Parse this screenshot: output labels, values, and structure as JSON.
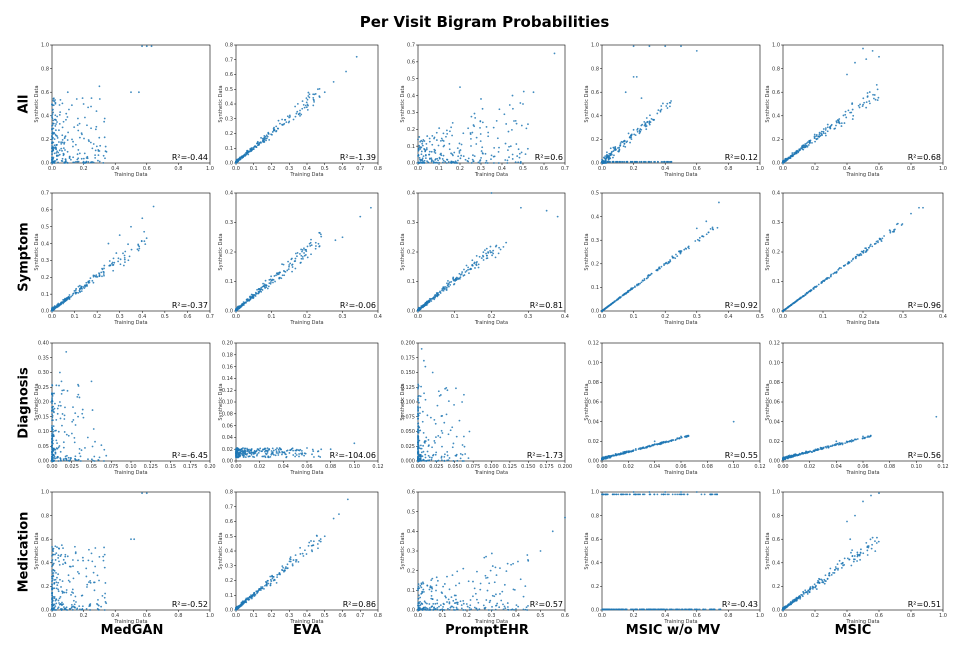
{
  "title": "Per Visit Bigram Probabilities",
  "rows": [
    "All",
    "Symptom",
    "Diagnosis",
    "Medication"
  ],
  "columns": [
    "MedGAN",
    "EVA",
    "PromptEHR",
    "MSIC w/o MV",
    "MSIC"
  ],
  "point_color": "#1f77b4",
  "chart_data": [
    {
      "row": "All",
      "column": "MedGAN",
      "type": "scatter",
      "xlabel": "Training Data",
      "ylabel": "Synthetic Data",
      "r2": "R²=-0.44",
      "xlim": [
        0,
        1.0
      ],
      "ylim": [
        0,
        1.0
      ],
      "xticks": [
        "0.0",
        "0.2",
        "0.4",
        "0.6",
        "0.8",
        "1.0"
      ],
      "yticks": [
        "0.0",
        "0.2",
        "0.4",
        "0.6",
        "0.8",
        "1.0"
      ],
      "pattern": "blob",
      "points": [
        [
          0.57,
          0.99
        ],
        [
          0.6,
          0.99
        ],
        [
          0.63,
          0.99
        ],
        [
          0.5,
          0.6
        ],
        [
          0.55,
          0.6
        ],
        [
          0.2,
          0.5
        ],
        [
          0.25,
          0.55
        ],
        [
          0.33,
          0.35
        ],
        [
          0.1,
          0.6
        ],
        [
          0.3,
          0.65
        ]
      ]
    },
    {
      "row": "All",
      "column": "EVA",
      "type": "scatter",
      "xlabel": "Training Data",
      "ylabel": "Synthetic Data",
      "r2": "R²=-1.39",
      "xlim": [
        0,
        0.8
      ],
      "ylim": [
        0,
        0.8
      ],
      "xticks": [
        "0.0",
        "0.1",
        "0.2",
        "0.3",
        "0.4",
        "0.5",
        "0.6",
        "0.7",
        "0.8"
      ],
      "yticks": [
        "0.0",
        "0.1",
        "0.2",
        "0.3",
        "0.4",
        "0.5",
        "0.6",
        "0.7",
        "0.8"
      ],
      "pattern": "linear",
      "points": [
        [
          0.68,
          0.72
        ],
        [
          0.62,
          0.62
        ],
        [
          0.55,
          0.55
        ],
        [
          0.5,
          0.48
        ]
      ]
    },
    {
      "row": "All",
      "column": "PromptEHR",
      "type": "scatter",
      "xlabel": "Training Data",
      "ylabel": "Synthetic Data",
      "r2": "R²=0.6",
      "xlim": [
        0,
        0.7
      ],
      "ylim": [
        0,
        0.7
      ],
      "xticks": [
        "0.0",
        "0.1",
        "0.2",
        "0.3",
        "0.4",
        "0.5",
        "0.6",
        "0.7"
      ],
      "yticks": [
        "0.0",
        "0.1",
        "0.2",
        "0.3",
        "0.4",
        "0.5",
        "0.6",
        "0.7"
      ],
      "pattern": "spread",
      "points": [
        [
          0.65,
          0.65
        ],
        [
          0.55,
          0.42
        ],
        [
          0.5,
          0.35
        ],
        [
          0.45,
          0.4
        ],
        [
          0.3,
          0.38
        ],
        [
          0.2,
          0.45
        ]
      ]
    },
    {
      "row": "All",
      "column": "MSIC w/o MV",
      "type": "scatter",
      "xlabel": "Training Data",
      "ylabel": "Synthetic Data",
      "r2": "R²=0.12",
      "xlim": [
        0,
        1.0
      ],
      "ylim": [
        0,
        1.0
      ],
      "xticks": [
        "0.0",
        "0.2",
        "0.4",
        "0.6",
        "0.8",
        "1.0"
      ],
      "yticks": [
        "0.0",
        "0.2",
        "0.4",
        "0.6",
        "0.8",
        "1.0"
      ],
      "pattern": "bands",
      "points": [
        [
          0.2,
          0.99
        ],
        [
          0.3,
          0.99
        ],
        [
          0.4,
          0.99
        ],
        [
          0.5,
          0.99
        ],
        [
          0.6,
          0.95
        ],
        [
          0.2,
          0.73
        ],
        [
          0.22,
          0.73
        ],
        [
          0.15,
          0.6
        ],
        [
          0.25,
          0.55
        ],
        [
          0.35,
          0.42
        ]
      ]
    },
    {
      "row": "All",
      "column": "MSIC",
      "type": "scatter",
      "xlabel": "Training Data",
      "ylabel": "Synthetic Data",
      "r2": "R²=0.68",
      "xlim": [
        0,
        1.0
      ],
      "ylim": [
        0,
        1.0
      ],
      "xticks": [
        "0.0",
        "0.2",
        "0.4",
        "0.6",
        "0.8",
        "1.0"
      ],
      "yticks": [
        "0.0",
        "0.2",
        "0.4",
        "0.6",
        "0.8",
        "1.0"
      ],
      "pattern": "linear",
      "points": [
        [
          0.5,
          0.97
        ],
        [
          0.56,
          0.95
        ],
        [
          0.6,
          0.9
        ],
        [
          0.45,
          0.85
        ],
        [
          0.4,
          0.75
        ],
        [
          0.52,
          0.88
        ]
      ]
    },
    {
      "row": "Symptom",
      "column": "MedGAN",
      "type": "scatter",
      "xlabel": "Training Data",
      "ylabel": "Synthetic Data",
      "r2": "R²=-0.37",
      "xlim": [
        0,
        0.7
      ],
      "ylim": [
        0,
        0.7
      ],
      "xticks": [
        "0.0",
        "0.1",
        "0.2",
        "0.3",
        "0.4",
        "0.5",
        "0.6",
        "0.7"
      ],
      "yticks": [
        "0.0",
        "0.1",
        "0.2",
        "0.3",
        "0.4",
        "0.5",
        "0.6",
        "0.7"
      ],
      "pattern": "linear",
      "points": [
        [
          0.45,
          0.62
        ],
        [
          0.4,
          0.55
        ],
        [
          0.35,
          0.5
        ],
        [
          0.3,
          0.45
        ],
        [
          0.25,
          0.4
        ]
      ]
    },
    {
      "row": "Symptom",
      "column": "EVA",
      "type": "scatter",
      "xlabel": "Training Data",
      "ylabel": "Synthetic Data",
      "r2": "R²=-0.06",
      "xlim": [
        0,
        0.4
      ],
      "ylim": [
        0,
        0.4
      ],
      "xticks": [
        "0.0",
        "0.1",
        "0.2",
        "0.3",
        "0.4"
      ],
      "yticks": [
        "0.0",
        "0.1",
        "0.2",
        "0.3",
        "0.4"
      ],
      "pattern": "linear",
      "points": [
        [
          0.38,
          0.35
        ],
        [
          0.35,
          0.32
        ],
        [
          0.3,
          0.25
        ],
        [
          0.28,
          0.24
        ]
      ]
    },
    {
      "row": "Symptom",
      "column": "PromptEHR",
      "type": "scatter",
      "xlabel": "Training Data",
      "ylabel": "Synthetic Data",
      "r2": "R²=0.81",
      "xlim": [
        0,
        0.4
      ],
      "ylim": [
        0,
        0.4
      ],
      "xticks": [
        "0.0",
        "0.1",
        "0.2",
        "0.3",
        "0.4"
      ],
      "yticks": [
        "0.0",
        "0.1",
        "0.2",
        "0.3",
        "0.4"
      ],
      "pattern": "linear",
      "points": [
        [
          0.2,
          0.4
        ],
        [
          0.28,
          0.35
        ],
        [
          0.35,
          0.34
        ],
        [
          0.38,
          0.32
        ]
      ]
    },
    {
      "row": "Symptom",
      "column": "MSIC w/o MV",
      "type": "scatter",
      "xlabel": "Training Data",
      "ylabel": "Synthetic Data",
      "r2": "R²=0.92",
      "xlim": [
        0,
        0.5
      ],
      "ylim": [
        0,
        0.5
      ],
      "xticks": [
        "0.0",
        "0.1",
        "0.2",
        "0.3",
        "0.4",
        "0.5"
      ],
      "yticks": [
        "0.0",
        "0.1",
        "0.2",
        "0.3",
        "0.4",
        "0.5"
      ],
      "pattern": "tight",
      "points": [
        [
          0.37,
          0.46
        ],
        [
          0.33,
          0.38
        ],
        [
          0.3,
          0.35
        ]
      ]
    },
    {
      "row": "Symptom",
      "column": "MSIC",
      "type": "scatter",
      "xlabel": "Training Data",
      "ylabel": "Synthetic Data",
      "r2": "R²=0.96",
      "xlim": [
        0,
        0.4
      ],
      "ylim": [
        0,
        0.4
      ],
      "xticks": [
        "0.0",
        "0.1",
        "0.2",
        "0.3",
        "0.4"
      ],
      "yticks": [
        "0.0",
        "0.1",
        "0.2",
        "0.3",
        "0.4"
      ],
      "pattern": "tight",
      "points": [
        [
          0.35,
          0.35
        ],
        [
          0.34,
          0.35
        ],
        [
          0.32,
          0.33
        ]
      ]
    },
    {
      "row": "Diagnosis",
      "column": "MedGAN",
      "type": "scatter",
      "xlabel": "Training Data",
      "ylabel": "Synthetic Data",
      "r2": "R²=-6.45",
      "xlim": [
        0,
        0.2
      ],
      "ylim": [
        0,
        0.4
      ],
      "xticks": [
        "0.00",
        "0.025",
        "0.05",
        "0.075",
        "0.10",
        "0.125",
        "0.15",
        "0.175",
        "0.20"
      ],
      "yticks": [
        "0.00",
        "0.05",
        "0.10",
        "0.15",
        "0.20",
        "0.25",
        "0.30",
        "0.35",
        "0.40"
      ],
      "pattern": "vertical",
      "points": [
        [
          0.018,
          0.37
        ],
        [
          0.01,
          0.3
        ],
        [
          0.012,
          0.27
        ],
        [
          0.05,
          0.27
        ],
        [
          0.015,
          0.24
        ],
        [
          0.01,
          0.2
        ]
      ]
    },
    {
      "row": "Diagnosis",
      "column": "EVA",
      "type": "scatter",
      "xlabel": "Training Data",
      "ylabel": "Synthetic Data",
      "r2": "R²=-104.06",
      "xlim": [
        0,
        0.12
      ],
      "ylim": [
        0,
        0.2
      ],
      "xticks": [
        "0.00",
        "0.02",
        "0.04",
        "0.06",
        "0.08",
        "0.10",
        "0.12"
      ],
      "yticks": [
        "0.00",
        "0.02",
        "0.04",
        "0.06",
        "0.08",
        "0.10",
        "0.12",
        "0.14",
        "0.16",
        "0.18",
        "0.20"
      ],
      "pattern": "flat",
      "points": [
        [
          0.1,
          0.03
        ],
        [
          0.08,
          0.02
        ],
        [
          0.06,
          0.022
        ]
      ]
    },
    {
      "row": "Diagnosis",
      "column": "PromptEHR",
      "type": "scatter",
      "xlabel": "Training Data",
      "ylabel": "Synthetic Data",
      "r2": "R²=-1.73",
      "xlim": [
        0,
        0.2
      ],
      "ylim": [
        0,
        0.2
      ],
      "xticks": [
        "0.000",
        "0.025",
        "0.050",
        "0.075",
        "0.100",
        "0.125",
        "0.150",
        "0.175",
        "0.200"
      ],
      "yticks": [
        "0.000",
        "0.025",
        "0.050",
        "0.075",
        "0.100",
        "0.125",
        "0.150",
        "0.175",
        "0.200"
      ],
      "pattern": "vertical",
      "points": [
        [
          0.005,
          0.19
        ],
        [
          0.008,
          0.17
        ],
        [
          0.01,
          0.16
        ],
        [
          0.02,
          0.15
        ],
        [
          0.04,
          0.12
        ],
        [
          0.06,
          0.1
        ],
        [
          0.07,
          0.05
        ]
      ]
    },
    {
      "row": "Diagnosis",
      "column": "MSIC w/o MV",
      "type": "scatter",
      "xlabel": "Training Data",
      "ylabel": "Synthetic Data",
      "r2": "R²=0.55",
      "xlim": [
        0,
        0.12
      ],
      "ylim": [
        0,
        0.12
      ],
      "xticks": [
        "0.00",
        "0.02",
        "0.04",
        "0.06",
        "0.08",
        "0.10",
        "0.12"
      ],
      "yticks": [
        "0.00",
        "0.02",
        "0.04",
        "0.06",
        "0.08",
        "0.10",
        "0.12"
      ],
      "pattern": "flatline",
      "points": [
        [
          0.1,
          0.04
        ],
        [
          0.06,
          0.025
        ],
        [
          0.04,
          0.02
        ]
      ]
    },
    {
      "row": "Diagnosis",
      "column": "MSIC",
      "type": "scatter",
      "xlabel": "Training Data",
      "ylabel": "Synthetic Data",
      "r2": "R²=0.56",
      "xlim": [
        0,
        0.12
      ],
      "ylim": [
        0,
        0.12
      ],
      "xticks": [
        "0.00",
        "0.02",
        "0.04",
        "0.06",
        "0.08",
        "0.10",
        "0.12"
      ],
      "yticks": [
        "0.00",
        "0.02",
        "0.04",
        "0.06",
        "0.08",
        "0.10",
        "0.12"
      ],
      "pattern": "flatline",
      "points": [
        [
          0.115,
          0.045
        ],
        [
          0.06,
          0.025
        ],
        [
          0.04,
          0.02
        ]
      ]
    },
    {
      "row": "Medication",
      "column": "MedGAN",
      "type": "scatter",
      "xlabel": "Training Data",
      "ylabel": "Synthetic Data",
      "r2": "R²=-0.52",
      "xlim": [
        0,
        1.0
      ],
      "ylim": [
        0,
        1.0
      ],
      "xticks": [
        "0.0",
        "0.2",
        "0.4",
        "0.6",
        "0.8",
        "1.0"
      ],
      "yticks": [
        "0.0",
        "0.2",
        "0.4",
        "0.6",
        "0.8",
        "1.0"
      ],
      "pattern": "blob",
      "points": [
        [
          0.57,
          0.99
        ],
        [
          0.6,
          0.99
        ],
        [
          0.5,
          0.6
        ],
        [
          0.52,
          0.6
        ],
        [
          0.25,
          0.48
        ],
        [
          0.3,
          0.45
        ],
        [
          0.15,
          0.48
        ]
      ]
    },
    {
      "row": "Medication",
      "column": "EVA",
      "type": "scatter",
      "xlabel": "Training Data",
      "ylabel": "Synthetic Data",
      "r2": "R²=0.86",
      "xlim": [
        0,
        0.8
      ],
      "ylim": [
        0,
        0.8
      ],
      "xticks": [
        "0.0",
        "0.1",
        "0.2",
        "0.3",
        "0.4",
        "0.5",
        "0.6",
        "0.7",
        "0.8"
      ],
      "yticks": [
        "0.0",
        "0.1",
        "0.2",
        "0.3",
        "0.4",
        "0.5",
        "0.6",
        "0.7",
        "0.8"
      ],
      "pattern": "linear",
      "points": [
        [
          0.63,
          0.75
        ],
        [
          0.58,
          0.65
        ],
        [
          0.55,
          0.62
        ],
        [
          0.5,
          0.5
        ]
      ]
    },
    {
      "row": "Medication",
      "column": "PromptEHR",
      "type": "scatter",
      "xlabel": "Training Data",
      "ylabel": "Synthetic Data",
      "r2": "R²=0.57",
      "xlim": [
        0,
        0.6
      ],
      "ylim": [
        0,
        0.6
      ],
      "xticks": [
        "0.0",
        "0.1",
        "0.2",
        "0.3",
        "0.4",
        "0.5",
        "0.6"
      ],
      "yticks": [
        "0.0",
        "0.1",
        "0.2",
        "0.3",
        "0.4",
        "0.5",
        "0.6"
      ],
      "pattern": "spread",
      "points": [
        [
          0.6,
          0.47
        ],
        [
          0.55,
          0.4
        ],
        [
          0.5,
          0.3
        ],
        [
          0.45,
          0.25
        ],
        [
          0.38,
          0.23
        ]
      ]
    },
    {
      "row": "Medication",
      "column": "MSIC w/o MV",
      "type": "scatter",
      "xlabel": "Training Data",
      "ylabel": "Synthetic Data",
      "r2": "R²=-0.43",
      "xlim": [
        0,
        1.0
      ],
      "ylim": [
        0,
        1.0
      ],
      "xticks": [
        "0.0",
        "0.2",
        "0.4",
        "0.6",
        "0.8",
        "1.0"
      ],
      "yticks": [
        "0.0",
        "0.2",
        "0.4",
        "0.6",
        "0.8",
        "1.0"
      ],
      "pattern": "twolines",
      "points": [
        [
          0.2,
          1.0
        ],
        [
          0.3,
          1.0
        ],
        [
          0.4,
          1.0
        ],
        [
          0.5,
          1.0
        ],
        [
          0.6,
          1.0
        ]
      ]
    },
    {
      "row": "Medication",
      "column": "MSIC",
      "type": "scatter",
      "xlabel": "Training Data",
      "ylabel": "Synthetic Data",
      "r2": "R²=0.51",
      "xlim": [
        0,
        1.0
      ],
      "ylim": [
        0,
        1.0
      ],
      "xticks": [
        "0.0",
        "0.2",
        "0.4",
        "0.6",
        "0.8",
        "1.0"
      ],
      "yticks": [
        "0.0",
        "0.2",
        "0.4",
        "0.6",
        "0.8",
        "1.0"
      ],
      "pattern": "linear",
      "points": [
        [
          0.6,
          0.99
        ],
        [
          0.55,
          0.97
        ],
        [
          0.5,
          0.92
        ],
        [
          0.45,
          0.8
        ],
        [
          0.4,
          0.75
        ],
        [
          0.42,
          0.6
        ]
      ]
    }
  ]
}
